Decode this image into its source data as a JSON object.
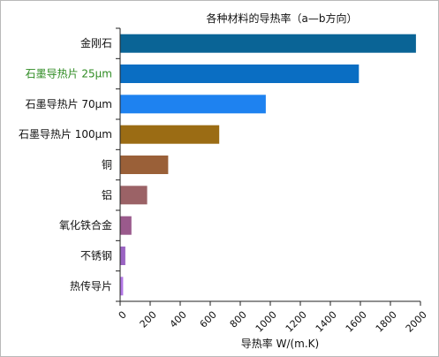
{
  "chart_data": {
    "type": "bar",
    "orientation": "horizontal",
    "title": "各种材料的导热率（a—b方向）",
    "xlabel": "导热率 W/(m.K)",
    "ylabel": "",
    "xlim": [
      0,
      2000
    ],
    "ticks": [
      "0",
      "200",
      "400",
      "600",
      "800",
      "1000",
      "1200",
      "1400",
      "1600",
      "1800",
      "2000"
    ],
    "grid": false,
    "legend": "none",
    "categories": [
      "金刚石",
      "石墨导热片 25μm",
      "石墨导热片 70μm",
      "石墨导热片 100μm",
      "铜",
      "铝",
      "氧化铁合金",
      "不锈钢",
      "热传导片"
    ],
    "values": [
      1970,
      1590,
      970,
      660,
      320,
      180,
      75,
      35,
      20
    ],
    "bar_colors": [
      "#0a6496",
      "#0a6ec3",
      "#1e82f0",
      "#9b6c14",
      "#9a6038",
      "#9b6266",
      "#9a5a8c",
      "#9b64c3",
      "#b478e6"
    ],
    "label_colors": [
      "#111111",
      "#2e8b22",
      "#111111",
      "#111111",
      "#111111",
      "#111111",
      "#111111",
      "#111111",
      "#111111"
    ]
  }
}
